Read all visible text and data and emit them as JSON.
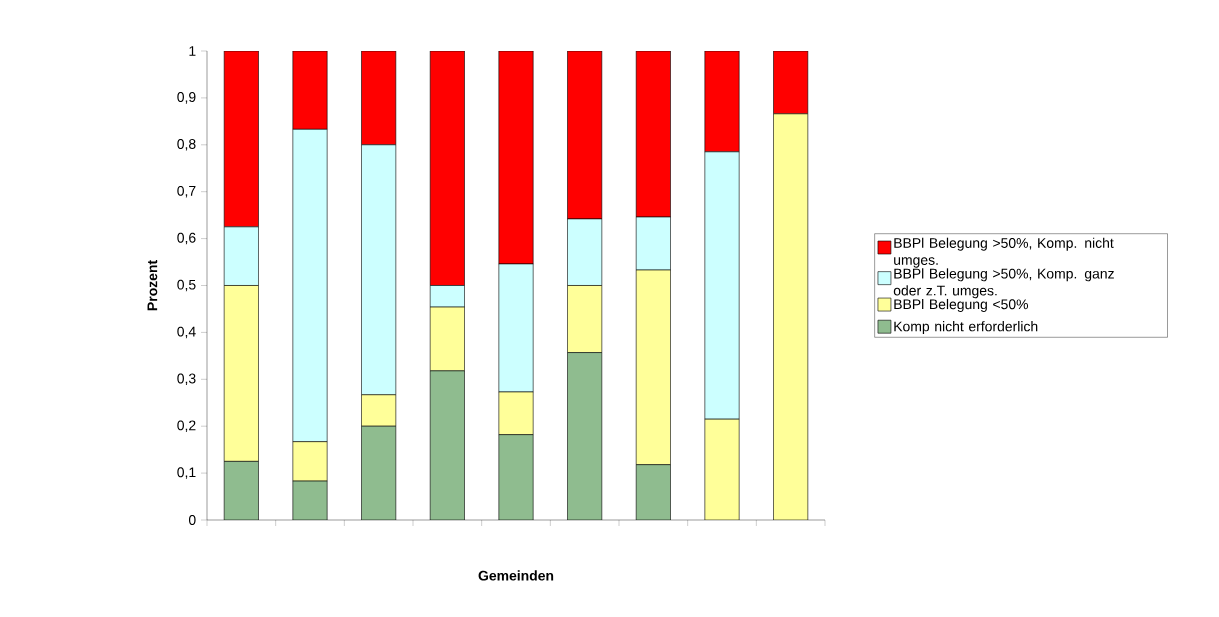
{
  "chart_data": {
    "type": "bar",
    "stacked": true,
    "xlabel": "Gemeinden",
    "ylabel": "Prozent",
    "categories": [
      null,
      null,
      null,
      null,
      null,
      null,
      null,
      null,
      null
    ],
    "series": [
      {
        "name": "Komp nicht erforderlich",
        "color": "#8fbc8f",
        "values": [
          0.125,
          0.083,
          0.2,
          0.318,
          0.182,
          0.357,
          0.118,
          0,
          0
        ]
      },
      {
        "name": "BBPl Belegung <50%",
        "color": "#ffff99",
        "values": [
          0.375,
          0.084,
          0.067,
          0.136,
          0.091,
          0.143,
          0.415,
          0.215,
          0.866
        ]
      },
      {
        "name": "BBPl Belegung >50%, Komp. ganz oder z.T. umges.",
        "color": "#ccffff",
        "values": [
          0.125,
          0.666,
          0.533,
          0.046,
          0.273,
          0.142,
          0.113,
          0.57,
          0
        ]
      },
      {
        "name": "BBPl Belegung >50%, Komp. nicht umges.",
        "color": "#ff0000",
        "values": [
          0.375,
          0.167,
          0.2,
          0.5,
          0.454,
          0.358,
          0.354,
          0.215,
          0.134
        ]
      }
    ],
    "ylim": [
      0,
      1
    ],
    "yticks": [
      0,
      {
        "value": 0.1,
        "label": "0,1"
      },
      {
        "value": 0.2,
        "label": "0,2"
      },
      {
        "value": 0.3,
        "label": "0,3"
      },
      {
        "value": 0.4,
        "label": "0,4"
      },
      {
        "value": 0.5,
        "label": "0,5"
      },
      {
        "value": 0.6,
        "label": "0,6"
      },
      {
        "value": 0.7,
        "label": "0,7"
      },
      {
        "value": 0.8,
        "label": "0,8"
      },
      {
        "value": 0.9,
        "label": "0,9"
      },
      1
    ],
    "grid": false,
    "legend": "right"
  }
}
